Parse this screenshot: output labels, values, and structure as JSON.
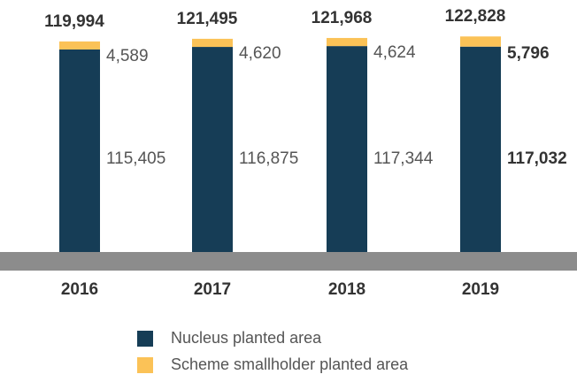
{
  "chart_data": {
    "type": "stacked_bar",
    "categories": [
      "2016",
      "2017",
      "2018",
      "2019"
    ],
    "series": [
      {
        "name": "Nucleus planted area",
        "color": "#163d56",
        "values": [
          115405,
          116875,
          117344,
          117032
        ],
        "value_labels": [
          "115,405",
          "116,875",
          "117,344",
          "117,032"
        ]
      },
      {
        "name": "Scheme smallholder planted area",
        "color": "#fbc257",
        "values": [
          4589,
          4620,
          4624,
          5796
        ],
        "value_labels": [
          "4,589",
          "4,620",
          "4,624",
          "5,796"
        ]
      }
    ],
    "totals": [
      119994,
      121495,
      121968,
      122828
    ],
    "totals_labels": [
      "119,994",
      "121,495",
      "121,968",
      "122,828"
    ],
    "ylim": [
      0,
      130000
    ]
  }
}
